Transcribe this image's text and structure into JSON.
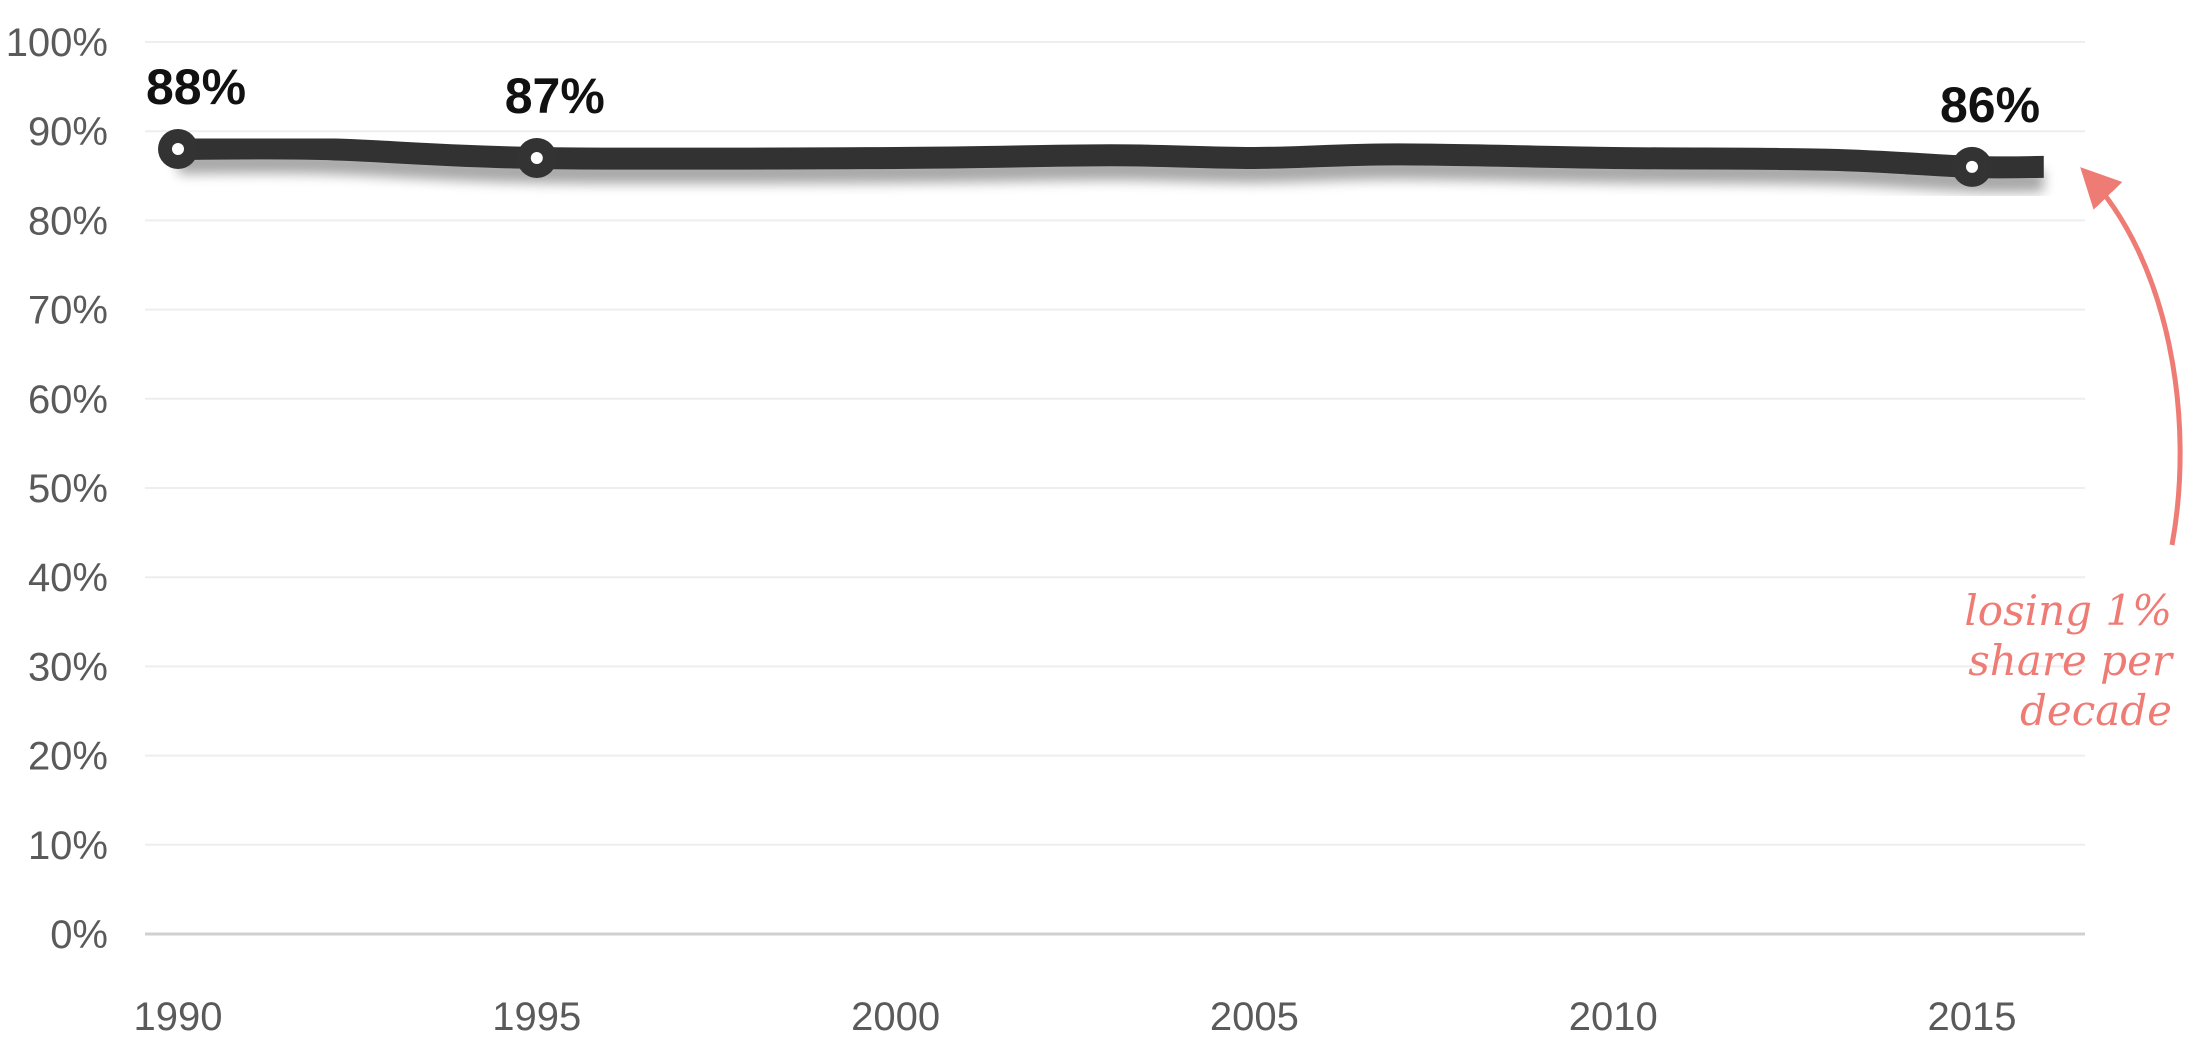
{
  "chart_data": {
    "type": "line",
    "title": "",
    "xlabel": "",
    "ylabel": "",
    "x": [
      1990,
      1992,
      1995,
      2000,
      2003,
      2005,
      2007,
      2010,
      2013,
      2015,
      2016
    ],
    "series": [
      {
        "values": [
          88,
          88,
          87,
          87,
          87.3,
          87,
          87.4,
          87,
          86.8,
          86,
          86
        ],
        "color": "#333333"
      }
    ],
    "xlim": [
      1990,
      2016
    ],
    "ylim": [
      0,
      100
    ],
    "x_ticks": [
      1990,
      1995,
      2000,
      2005,
      2010,
      2015
    ],
    "x_tick_labels": [
      "1990",
      "1995",
      "2000",
      "2005",
      "2010",
      "2015"
    ],
    "y_ticks": [
      0,
      10,
      20,
      30,
      40,
      50,
      60,
      70,
      80,
      90,
      100
    ],
    "y_tick_labels": [
      "0%",
      "10%",
      "20%",
      "30%",
      "40%",
      "50%",
      "60%",
      "70%",
      "80%",
      "90%",
      "100%"
    ],
    "markers": [
      {
        "x": 1990,
        "y": 88,
        "label": "88%"
      },
      {
        "x": 1995,
        "y": 87,
        "label": "87%"
      },
      {
        "x": 2015,
        "y": 86,
        "label": "86%"
      }
    ],
    "annotation": {
      "lines": [
        "losing 1%",
        "share per",
        "decade"
      ],
      "color": "#ef7b75",
      "points_to": {
        "x": 2016,
        "y": 86
      }
    },
    "grid": true,
    "legend": "none"
  }
}
